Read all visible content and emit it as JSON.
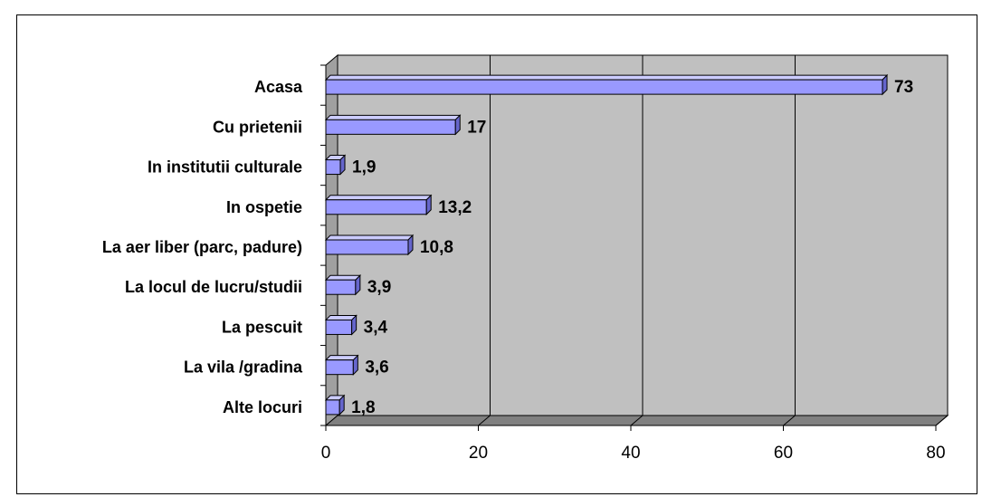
{
  "chart_data": {
    "type": "bar",
    "orientation": "horizontal",
    "categories": [
      "Acasa",
      "Cu prietenii",
      "In institutii culturale",
      "In ospetie",
      "La aer liber (parc, padure)",
      "La locul de lucru/studii",
      "La pescuit",
      "La vila /gradina",
      "Alte locuri"
    ],
    "values": [
      73,
      17,
      1.9,
      13.2,
      10.8,
      3.9,
      3.4,
      3.6,
      1.8
    ],
    "value_labels": [
      "73",
      "17",
      "1,9",
      "13,2",
      "10,8",
      "3,9",
      "3,4",
      "3,6",
      "1,8"
    ],
    "xlim": [
      0,
      80
    ],
    "xticks": [
      0,
      20,
      40,
      60,
      80
    ],
    "title": "",
    "xlabel": "",
    "ylabel": "",
    "grid": true,
    "three_d": true,
    "colors": {
      "bar_front": "#9999ff",
      "bar_top": "#ccccff",
      "bar_side": "#6666cc",
      "plot_back": "#c0c0c0",
      "plot_floor": "#808080",
      "plot_wall": "#a0a0a0"
    }
  }
}
